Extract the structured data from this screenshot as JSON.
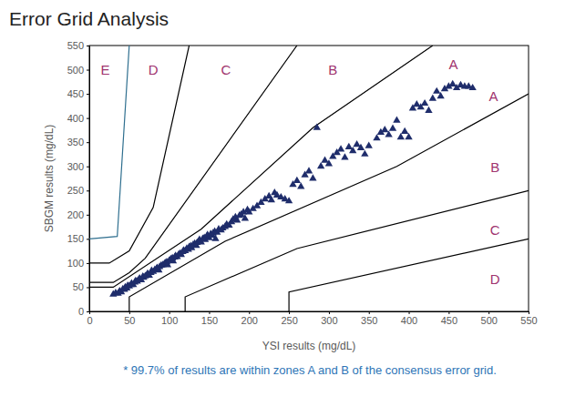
{
  "chart_data": {
    "type": "scatter",
    "title": "Error Grid Analysis",
    "x_label": "YSI results (mg/dL)",
    "y_label": "SBGM results (mg/dL)",
    "xlim": [
      0,
      550
    ],
    "ylim": [
      0,
      550
    ],
    "xticks": [
      0,
      50,
      100,
      150,
      200,
      250,
      300,
      350,
      400,
      450,
      500,
      550
    ],
    "yticks": [
      0,
      50,
      100,
      150,
      200,
      250,
      300,
      350,
      400,
      450,
      500,
      550
    ],
    "grid": false,
    "series": [
      {
        "type": "scatter",
        "marker": "triangle",
        "color": "#1f2d6b",
        "x": [
          30,
          33,
          36,
          38,
          40,
          42,
          44,
          45,
          47,
          48,
          50,
          52,
          53,
          55,
          57,
          58,
          60,
          62,
          63,
          65,
          67,
          68,
          70,
          72,
          73,
          75,
          77,
          78,
          80,
          82,
          84,
          85,
          87,
          88,
          90,
          92,
          94,
          95,
          97,
          98,
          100,
          102,
          104,
          105,
          107,
          108,
          110,
          112,
          114,
          115,
          117,
          118,
          120,
          122,
          124,
          125,
          127,
          128,
          130,
          132,
          134,
          135,
          137,
          138,
          140,
          142,
          144,
          145,
          147,
          148,
          150,
          152,
          154,
          155,
          157,
          158,
          160,
          162,
          165,
          167,
          170,
          172,
          175,
          178,
          180,
          183,
          185,
          188,
          190,
          193,
          195,
          198,
          200,
          205,
          210,
          215,
          220,
          225,
          228,
          232,
          235,
          240,
          245,
          250,
          255,
          260,
          265,
          270,
          275,
          280,
          285,
          290,
          295,
          300,
          305,
          310,
          315,
          320,
          325,
          330,
          335,
          340,
          345,
          350,
          360,
          365,
          370,
          375,
          380,
          385,
          390,
          395,
          400,
          405,
          410,
          415,
          420,
          425,
          430,
          435,
          440,
          445,
          450,
          455,
          460,
          465,
          470,
          475,
          480
        ],
        "values": [
          35,
          38,
          37,
          42,
          40,
          46,
          45,
          50,
          48,
          53,
          52,
          55,
          58,
          55,
          60,
          63,
          62,
          66,
          68,
          65,
          72,
          70,
          73,
          75,
          78,
          74,
          80,
          84,
          82,
          86,
          88,
          90,
          85,
          92,
          95,
          96,
          98,
          100,
          102,
          96,
          105,
          108,
          110,
          104,
          112,
          115,
          113,
          118,
          120,
          117,
          123,
          126,
          125,
          130,
          128,
          133,
          135,
          131,
          138,
          140,
          136,
          142,
          145,
          148,
          143,
          150,
          152,
          148,
          155,
          158,
          152,
          160,
          157,
          162,
          165,
          150,
          163,
          170,
          168,
          172,
          175,
          180,
          178,
          185,
          190,
          195,
          188,
          198,
          200,
          205,
          192,
          210,
          205,
          212,
          218,
          225,
          232,
          238,
          230,
          245,
          240,
          236,
          232,
          228,
          262,
          270,
          258,
          282,
          290,
          275,
          380,
          300,
          312,
          305,
          320,
          328,
          335,
          318,
          340,
          332,
          345,
          338,
          325,
          342,
          358,
          370,
          375,
          365,
          378,
          395,
          360,
          372,
          360,
          420,
          428,
          422,
          430,
          415,
          440,
          455,
          445,
          460,
          465,
          470,
          462,
          468,
          465,
          465,
          462
        ]
      },
      {
        "type": "line",
        "line_style": "solid",
        "color": "#000000",
        "x": [
          0,
          30,
          140,
          280,
          430
        ],
        "values": [
          50,
          50,
          170,
          380,
          550
        ]
      },
      {
        "type": "line",
        "line_style": "solid",
        "color": "#000000",
        "x": [
          50,
          50,
          170,
          385,
          550
        ],
        "values": [
          0,
          30,
          145,
          300,
          450
        ]
      },
      {
        "type": "line",
        "line_style": "solid",
        "color": "#000000",
        "x": [
          0,
          30,
          50,
          70,
          260
        ],
        "values": [
          60,
          60,
          80,
          110,
          550
        ]
      },
      {
        "type": "line",
        "line_style": "solid",
        "color": "#000000",
        "x": [
          120,
          120,
          260,
          550
        ],
        "values": [
          0,
          30,
          130,
          250
        ]
      },
      {
        "type": "line",
        "line_style": "solid",
        "color": "#000000",
        "x": [
          0,
          25,
          50,
          80,
          125
        ],
        "values": [
          100,
          100,
          125,
          215,
          550
        ]
      },
      {
        "type": "line",
        "line_style": "solid",
        "color": "#000000",
        "x": [
          250,
          250,
          550
        ],
        "values": [
          0,
          40,
          150
        ]
      },
      {
        "type": "line",
        "line_style": "solid",
        "color": "#2f6f8f",
        "x": [
          0,
          35,
          50
        ],
        "values": [
          150,
          155,
          550
        ]
      }
    ],
    "annotations": [
      {
        "text": "E",
        "x": 20,
        "y": 497,
        "color": "#a0336e"
      },
      {
        "text": "D",
        "x": 80,
        "y": 497,
        "color": "#a0336e"
      },
      {
        "text": "C",
        "x": 171,
        "y": 497,
        "color": "#a0336e"
      },
      {
        "text": "B",
        "x": 305,
        "y": 497,
        "color": "#a0336e"
      },
      {
        "text": "A",
        "x": 456,
        "y": 508,
        "color": "#a0336e"
      },
      {
        "text": "A",
        "x": 506,
        "y": 442,
        "color": "#a0336e"
      },
      {
        "text": "B",
        "x": 508,
        "y": 296,
        "color": "#a0336e"
      },
      {
        "text": "C",
        "x": 508,
        "y": 166,
        "color": "#a0336e"
      },
      {
        "text": "D",
        "x": 508,
        "y": 64,
        "color": "#a0336e"
      }
    ],
    "footnote": {
      "text": "* 99.7% of results are within zones A and B of the consensus error grid.",
      "color": "#2e75b6"
    }
  }
}
